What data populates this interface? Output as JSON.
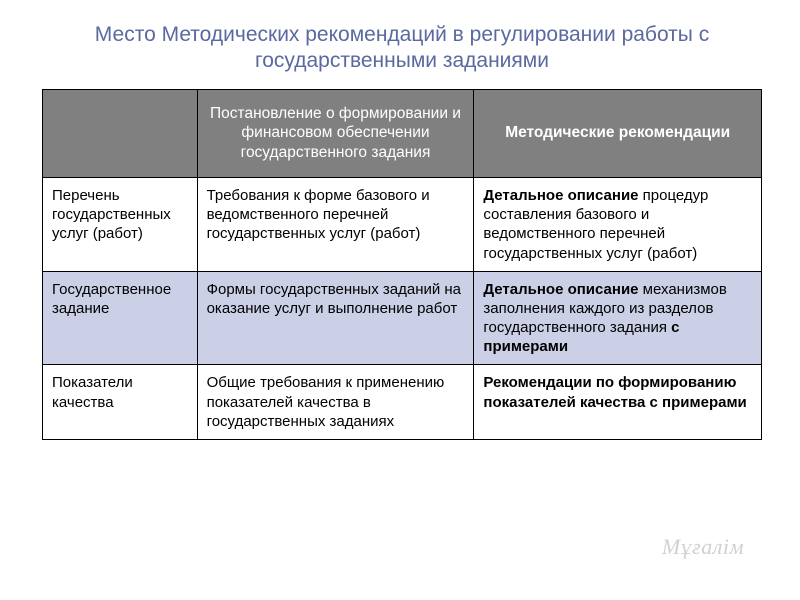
{
  "title": "Место Методических рекомендаций в регулировании работы с государственными заданиями",
  "colors": {
    "title": "#5a69a0",
    "header_bg": "#808080",
    "header_fg": "#ffffff",
    "border": "#000000",
    "row_shade": "#ccd0e6",
    "background": "#ffffff"
  },
  "table": {
    "col_widths_pct": [
      21.5,
      38.5,
      40
    ],
    "header": {
      "c0": "",
      "c1": "Постановление о формировании и финансовом обеспечении государственного задания",
      "c2": "Методические рекомендации"
    },
    "rows": [
      {
        "shaded": false,
        "c0": "Перечень государственных услуг (работ)",
        "c1": "Требования к форме базового и ведомственного перечней государственных услуг (работ)",
        "c2_bold_lead": "Детальное описание",
        "c2_rest": " процедур составления базового и ведомственного перечней государственных услуг (работ)",
        "c2_bold_tail": ""
      },
      {
        "shaded": true,
        "c0": "Государственное задание",
        "c1": "Формы государственных заданий на оказание услуг и выполнение работ",
        "c2_bold_lead": "Детальное описание",
        "c2_rest": " механизмов заполнения каждого из разделов государственного задания ",
        "c2_bold_tail": "с примерами"
      },
      {
        "shaded": false,
        "c0": "Показатели качества",
        "c1": "Общие требования к применению показателей качества в государственных заданиях",
        "c2_bold_lead": "Рекомендации по формированию показателей качества с примерами",
        "c2_rest": "",
        "c2_bold_tail": ""
      }
    ]
  },
  "watermark": "Мұғалім"
}
